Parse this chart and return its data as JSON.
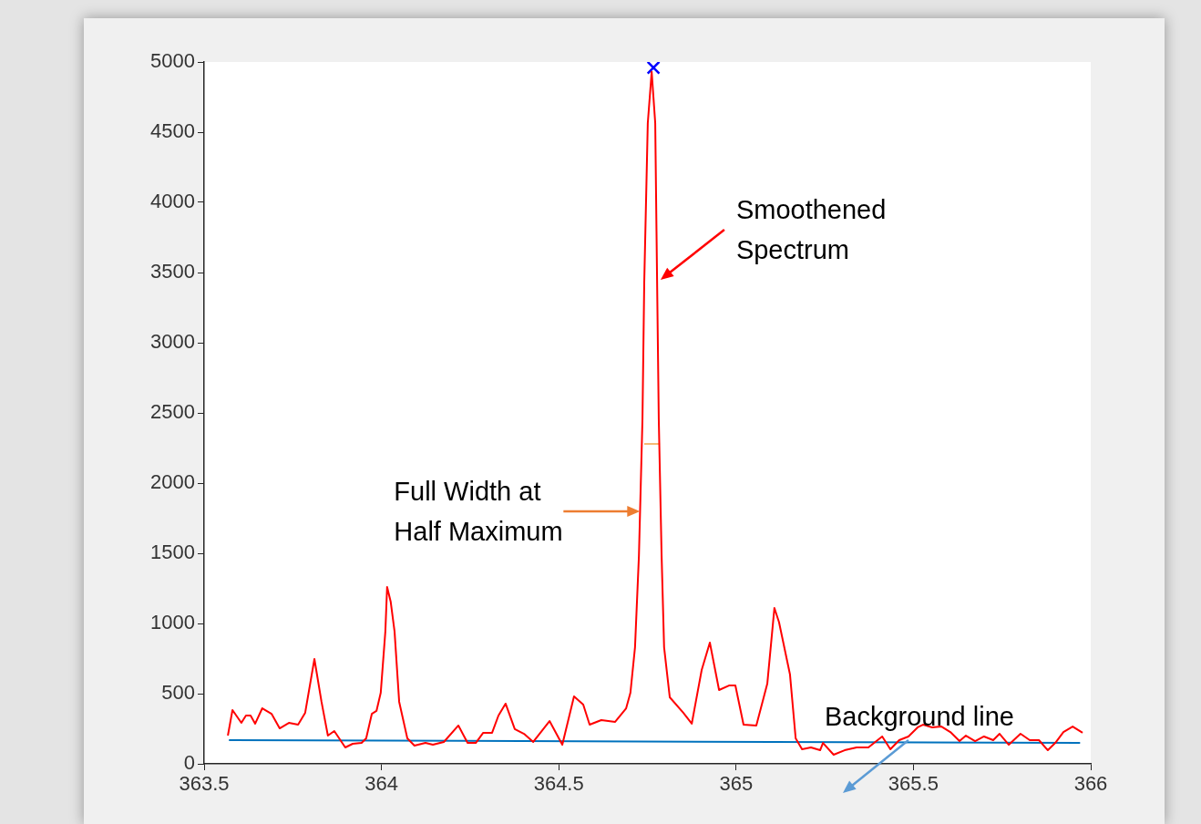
{
  "chart_data": {
    "type": "line",
    "xlim": [
      363.5,
      366
    ],
    "xticks": [
      363.5,
      364,
      364.5,
      365,
      365.5,
      366
    ],
    "ylim": [
      0,
      5000
    ],
    "yticks": [
      0,
      500,
      1000,
      1500,
      2000,
      2500,
      3000,
      3500,
      4000,
      4500,
      5000
    ],
    "grid": false,
    "legend": false,
    "marker": "none",
    "series": [
      {
        "color": "#ff0000",
        "x": [
          363.567,
          363.58,
          363.605,
          363.618,
          363.631,
          363.644,
          363.664,
          363.69,
          363.713,
          363.739,
          363.765,
          363.785,
          363.811,
          363.831,
          363.849,
          363.867,
          363.898,
          363.919,
          363.944,
          363.957,
          363.973,
          363.986,
          363.998,
          364.011,
          364.016,
          364.026,
          364.037,
          364.05,
          364.073,
          364.093,
          364.124,
          364.145,
          364.176,
          364.217,
          364.243,
          364.266,
          364.287,
          364.312,
          364.33,
          364.35,
          364.376,
          364.402,
          364.428,
          364.474,
          364.51,
          364.543,
          364.569,
          364.587,
          364.62,
          364.659,
          364.69,
          364.702,
          364.715,
          364.726,
          364.736,
          364.741,
          364.751,
          364.762,
          364.772,
          364.777,
          364.782,
          364.79,
          364.797,
          364.813,
          364.851,
          364.875,
          364.903,
          364.926,
          364.952,
          364.98,
          364.998,
          365.021,
          365.057,
          365.088,
          365.108,
          365.121,
          365.152,
          365.168,
          365.186,
          365.211,
          365.237,
          365.245,
          365.275,
          365.306,
          365.34,
          365.373,
          365.412,
          365.435,
          365.46,
          365.486,
          365.512,
          365.527,
          365.553,
          365.579,
          365.604,
          365.63,
          365.648,
          365.674,
          365.699,
          365.725,
          365.743,
          365.769,
          365.802,
          365.828,
          365.854,
          365.879,
          365.9,
          365.923,
          365.949,
          365.977
        ],
        "values": [
          201,
          383,
          292,
          344,
          344,
          286,
          396,
          357,
          253,
          292,
          279,
          364,
          747,
          442,
          201,
          234,
          117,
          143,
          149,
          182,
          357,
          377,
          506,
          942,
          1260,
          1156,
          942,
          442,
          182,
          130,
          149,
          136,
          156,
          273,
          149,
          149,
          221,
          221,
          344,
          429,
          247,
          214,
          156,
          305,
          136,
          480,
          422,
          279,
          312,
          299,
          396,
          506,
          831,
          1481,
          2455,
          3429,
          4565,
          4930,
          4565,
          3494,
          2455,
          1481,
          831,
          474,
          364,
          286,
          669,
          864,
          526,
          558,
          558,
          279,
          273,
          571,
          1110,
          1010,
          636,
          182,
          104,
          117,
          97,
          149,
          65,
          97,
          117,
          117,
          195,
          104,
          169,
          195,
          260,
          279,
          260,
          266,
          227,
          162,
          201,
          162,
          195,
          169,
          214,
          136,
          214,
          169,
          169,
          97,
          149,
          227,
          266,
          221
        ]
      },
      {
        "color": "#0072bd",
        "x": [
          363.57,
          365.97
        ],
        "values": [
          169,
          149
        ]
      },
      {
        "type": "scatter",
        "marker": "cross",
        "color": "#0000ff",
        "x": [
          364.767
        ],
        "values": [
          4960
        ]
      },
      {
        "color": "#f5b971",
        "x": [
          364.741,
          364.785
        ],
        "values": [
          2279,
          2279
        ]
      }
    ],
    "annotations": [
      {
        "text": "Smoothened Spectrum",
        "x": 364.787,
        "y": 3448
      },
      {
        "text": "Full Width at Half Maximum",
        "x": 364.729,
        "y": 1799
      },
      {
        "text": "Background line",
        "x": 365.486,
        "y": 169
      }
    ]
  }
}
